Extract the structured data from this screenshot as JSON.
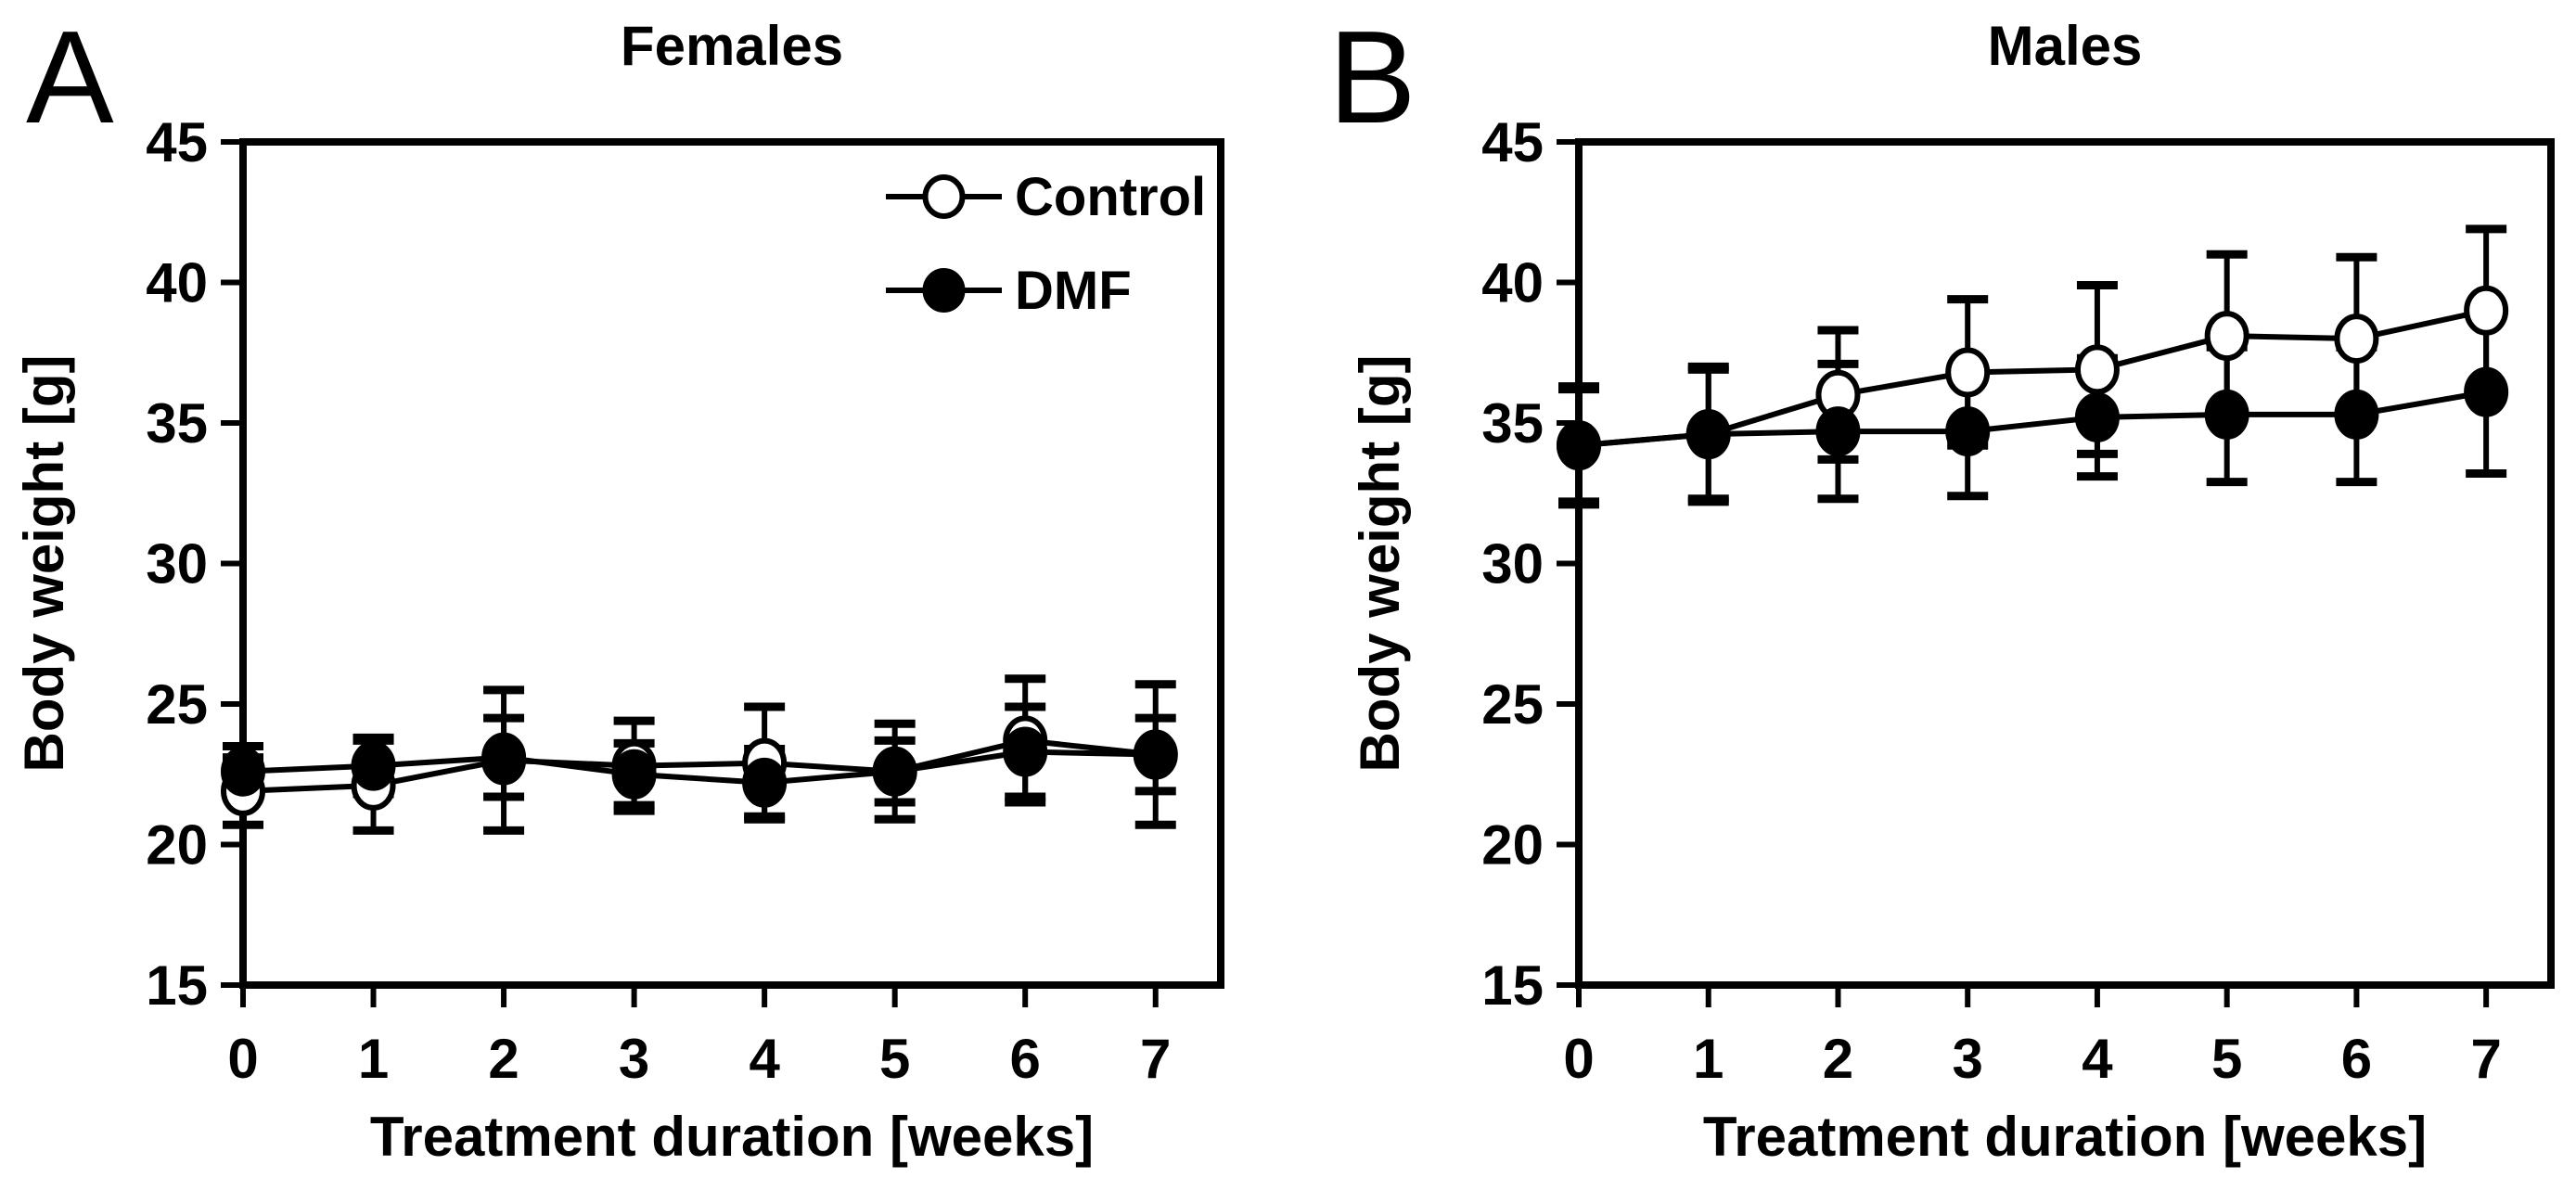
{
  "figure": {
    "background": "#ffffff",
    "ink": "#000000",
    "description": "Two-panel line chart of mouse body weight over treatment duration"
  },
  "chart_data": [
    {
      "type": "line",
      "panel_label": "A",
      "title": "Females",
      "xlabel": "Treatment duration [weeks]",
      "ylabel": "Body weight [g]",
      "x": [
        0,
        1,
        2,
        3,
        4,
        5,
        6,
        7
      ],
      "xticks": [
        0,
        1,
        2,
        3,
        4,
        5,
        6,
        7
      ],
      "yticks": [
        15,
        20,
        25,
        30,
        35,
        40,
        45
      ],
      "xlim": [
        0,
        7.5
      ],
      "ylim": [
        15,
        45
      ],
      "grid": false,
      "legend": {
        "position": "inside-top-right",
        "entries": [
          "Control",
          "DMF"
        ]
      },
      "series": [
        {
          "name": "Control",
          "marker": "open-circle",
          "color": "#000000",
          "values": [
            21.9,
            22.1,
            23.0,
            22.8,
            22.9,
            22.6,
            23.7,
            23.2
          ],
          "errors": [
            1.2,
            1.6,
            2.5,
            1.6,
            2.0,
            1.1,
            2.2,
            2.5
          ]
        },
        {
          "name": "DMF",
          "marker": "filled-circle",
          "color": "#000000",
          "values": [
            22.6,
            22.8,
            23.1,
            22.5,
            22.2,
            22.6,
            23.3,
            23.2
          ],
          "errors": [
            0.9,
            1.0,
            1.4,
            1.1,
            1.2,
            1.7,
            1.6,
            1.3
          ]
        }
      ]
    },
    {
      "type": "line",
      "panel_label": "B",
      "title": "Males",
      "xlabel": "Treatment duration [weeks]",
      "ylabel": "Body weight [g]",
      "x": [
        0,
        1,
        2,
        3,
        4,
        5,
        6,
        7
      ],
      "xticks": [
        0,
        1,
        2,
        3,
        4,
        5,
        6,
        7
      ],
      "yticks": [
        15,
        20,
        25,
        30,
        35,
        40,
        45
      ],
      "xlim": [
        0,
        7.5
      ],
      "ylim": [
        15,
        45
      ],
      "grid": false,
      "legend": null,
      "series": [
        {
          "name": "Control",
          "marker": "open-circle",
          "color": "#000000",
          "values": [
            34.2,
            34.6,
            36.0,
            36.8,
            36.9,
            38.1,
            38.0,
            39.0
          ],
          "errors": [
            2.0,
            2.4,
            2.3,
            2.6,
            3.0,
            2.9,
            2.9,
            2.9
          ]
        },
        {
          "name": "DMF",
          "marker": "filled-circle",
          "color": "#000000",
          "values": [
            34.2,
            34.6,
            34.7,
            34.7,
            35.2,
            35.3,
            35.3,
            36.1
          ],
          "errors": [
            2.1,
            2.3,
            2.4,
            2.3,
            2.1,
            2.4,
            2.4,
            2.9
          ]
        }
      ]
    }
  ]
}
